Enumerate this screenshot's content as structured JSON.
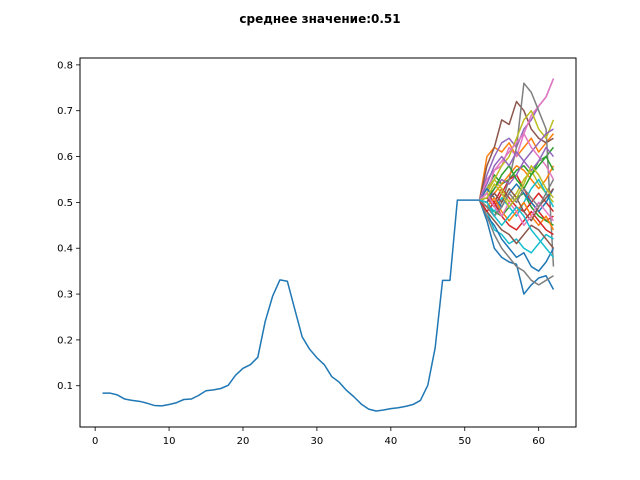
{
  "chart_data": {
    "type": "line",
    "title": "среднее значение:0.51",
    "xlabel": "",
    "ylabel": "",
    "xlim": [
      -2.05,
      65.05
    ],
    "ylim": [
      0.01,
      0.815
    ],
    "xticks": [
      0,
      10,
      20,
      30,
      40,
      50,
      60
    ],
    "yticks": [
      0.1,
      0.2,
      0.3,
      0.4,
      0.5,
      0.6,
      0.7,
      0.8
    ],
    "grid": false,
    "legend": "none",
    "history": {
      "color": "#1f77b4",
      "x": [
        1,
        2,
        3,
        4,
        5,
        6,
        7,
        8,
        9,
        10,
        11,
        12,
        13,
        14,
        15,
        16,
        17,
        18,
        19,
        20,
        21,
        22,
        23,
        24,
        25,
        26,
        27,
        28,
        29,
        30,
        31,
        32,
        33,
        34,
        35,
        36,
        37,
        38,
        39,
        40,
        41,
        42,
        43,
        44,
        45,
        46,
        47,
        48,
        49,
        50,
        51,
        52
      ],
      "y": [
        0.084,
        0.084,
        0.08,
        0.071,
        0.068,
        0.066,
        0.062,
        0.057,
        0.056,
        0.059,
        0.063,
        0.07,
        0.071,
        0.079,
        0.089,
        0.091,
        0.094,
        0.101,
        0.123,
        0.138,
        0.146,
        0.162,
        0.24,
        0.295,
        0.331,
        0.328,
        0.267,
        0.207,
        0.18,
        0.161,
        0.146,
        0.12,
        0.108,
        0.09,
        0.076,
        0.06,
        0.049,
        0.045,
        0.047,
        0.05,
        0.052,
        0.055,
        0.059,
        0.068,
        0.101,
        0.183,
        0.33,
        0.33,
        0.505,
        0.505,
        0.505,
        0.505
      ]
    },
    "forecast_start": 52,
    "forecast_x": [
      52,
      53,
      54,
      55,
      56,
      57,
      58,
      59,
      60,
      61,
      62
    ],
    "series_colors": [
      "#1f77b4",
      "#ff7f0e",
      "#2ca02c",
      "#d62728",
      "#9467bd",
      "#8c564b",
      "#e377c2",
      "#7f7f7f",
      "#bcbd22",
      "#17becf"
    ],
    "series": [
      {
        "values": [
          0.505,
          0.46,
          0.4,
          0.38,
          0.37,
          0.365,
          0.3,
          0.32,
          0.335,
          0.34,
          0.31
        ]
      },
      {
        "values": [
          0.505,
          0.6,
          0.62,
          0.61,
          0.63,
          0.6,
          0.62,
          0.64,
          0.61,
          0.63,
          0.65
        ]
      },
      {
        "values": [
          0.505,
          0.53,
          0.56,
          0.54,
          0.55,
          0.57,
          0.58,
          0.56,
          0.59,
          0.6,
          0.62
        ]
      },
      {
        "values": [
          0.505,
          0.51,
          0.49,
          0.52,
          0.55,
          0.56,
          0.53,
          0.5,
          0.48,
          0.46,
          0.47
        ]
      },
      {
        "values": [
          0.505,
          0.56,
          0.6,
          0.63,
          0.64,
          0.62,
          0.66,
          0.68,
          0.71,
          0.73,
          0.77
        ]
      },
      {
        "values": [
          0.505,
          0.58,
          0.62,
          0.68,
          0.67,
          0.72,
          0.7,
          0.66,
          0.64,
          0.63,
          0.64
        ]
      },
      {
        "values": [
          0.505,
          0.52,
          0.57,
          0.58,
          0.62,
          0.6,
          0.65,
          0.69,
          0.71,
          0.73,
          0.77
        ]
      },
      {
        "values": [
          0.505,
          0.49,
          0.47,
          0.5,
          0.55,
          0.62,
          0.76,
          0.74,
          0.7,
          0.66,
          0.36
        ]
      },
      {
        "values": [
          0.505,
          0.53,
          0.55,
          0.58,
          0.6,
          0.64,
          0.68,
          0.7,
          0.66,
          0.64,
          0.68
        ]
      },
      {
        "values": [
          0.505,
          0.48,
          0.44,
          0.43,
          0.41,
          0.42,
          0.4,
          0.39,
          0.41,
          0.43,
          0.42
        ]
      },
      {
        "values": [
          0.505,
          0.47,
          0.45,
          0.42,
          0.4,
          0.38,
          0.39,
          0.36,
          0.35,
          0.37,
          0.4
        ]
      },
      {
        "values": [
          0.505,
          0.51,
          0.52,
          0.54,
          0.56,
          0.58,
          0.57,
          0.55,
          0.53,
          0.55,
          0.58
        ]
      },
      {
        "values": [
          0.505,
          0.49,
          0.48,
          0.47,
          0.49,
          0.51,
          0.52,
          0.49,
          0.47,
          0.46,
          0.45
        ]
      },
      {
        "values": [
          0.505,
          0.52,
          0.5,
          0.53,
          0.51,
          0.49,
          0.48,
          0.5,
          0.52,
          0.5,
          0.48
        ]
      },
      {
        "values": [
          0.505,
          0.5,
          0.53,
          0.55,
          0.54,
          0.56,
          0.59,
          0.61,
          0.63,
          0.65,
          0.66
        ]
      },
      {
        "values": [
          0.505,
          0.48,
          0.46,
          0.44,
          0.43,
          0.41,
          0.43,
          0.45,
          0.44,
          0.42,
          0.4
        ]
      },
      {
        "values": [
          0.505,
          0.55,
          0.57,
          0.59,
          0.61,
          0.63,
          0.65,
          0.62,
          0.6,
          0.58,
          0.55
        ]
      },
      {
        "values": [
          0.505,
          0.47,
          0.43,
          0.4,
          0.38,
          0.36,
          0.35,
          0.33,
          0.32,
          0.33,
          0.34
        ]
      },
      {
        "values": [
          0.505,
          0.52,
          0.55,
          0.53,
          0.5,
          0.52,
          0.55,
          0.57,
          0.54,
          0.52,
          0.5
        ]
      },
      {
        "values": [
          0.505,
          0.5,
          0.48,
          0.51,
          0.49,
          0.47,
          0.5,
          0.53,
          0.55,
          0.52,
          0.49
        ]
      },
      {
        "values": [
          0.505,
          0.53,
          0.51,
          0.49,
          0.52,
          0.54,
          0.52,
          0.5,
          0.48,
          0.5,
          0.53
        ]
      },
      {
        "values": [
          0.505,
          0.49,
          0.51,
          0.48,
          0.46,
          0.48,
          0.5,
          0.47,
          0.45,
          0.47,
          0.44
        ]
      },
      {
        "values": [
          0.505,
          0.51,
          0.53,
          0.56,
          0.58,
          0.55,
          0.53,
          0.56,
          0.58,
          0.6,
          0.57
        ]
      },
      {
        "values": [
          0.505,
          0.48,
          0.5,
          0.47,
          0.45,
          0.44,
          0.46,
          0.48,
          0.46,
          0.44,
          0.43
        ]
      },
      {
        "values": [
          0.505,
          0.54,
          0.58,
          0.6,
          0.58,
          0.61,
          0.59,
          0.57,
          0.59,
          0.62,
          0.6
        ]
      },
      {
        "values": [
          0.505,
          0.5,
          0.52,
          0.5,
          0.53,
          0.51,
          0.48,
          0.46,
          0.49,
          0.51,
          0.53
        ]
      },
      {
        "values": [
          0.505,
          0.52,
          0.49,
          0.47,
          0.5,
          0.48,
          0.45,
          0.47,
          0.5,
          0.48,
          0.46
        ]
      },
      {
        "values": [
          0.505,
          0.49,
          0.47,
          0.49,
          0.52,
          0.5,
          0.53,
          0.51,
          0.49,
          0.52,
          0.55
        ]
      },
      {
        "values": [
          0.505,
          0.51,
          0.54,
          0.52,
          0.49,
          0.51,
          0.54,
          0.58,
          0.56,
          0.53,
          0.51
        ]
      },
      {
        "values": [
          0.505,
          0.5,
          0.47,
          0.45,
          0.47,
          0.49,
          0.47,
          0.44,
          0.42,
          0.4,
          0.38
        ]
      }
    ]
  }
}
